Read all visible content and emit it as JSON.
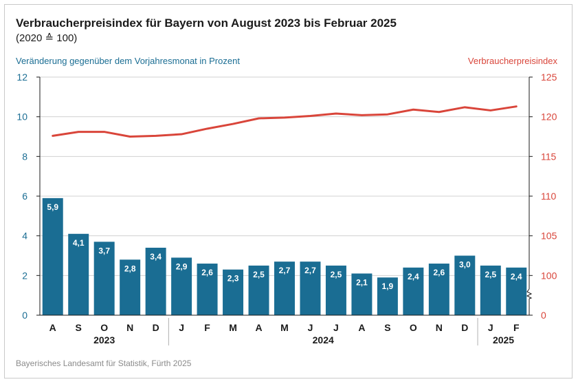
{
  "title": "Verbraucherpreisindex für Bayern von August 2023 bis Februar 2025",
  "subtitle": "(2020 ≙ 100)",
  "source": "Bayerisches Landesamt für Statistik, Fürth 2025",
  "colors": {
    "bar": "#1a6d93",
    "line": "#d9453a",
    "grid": "#d0d0d0",
    "axis_left": "#1a6d93",
    "axis_right": "#d9453a"
  },
  "chart_data": {
    "type": "bar+line",
    "categories": [
      "A",
      "S",
      "O",
      "N",
      "D",
      "J",
      "F",
      "M",
      "A",
      "M",
      "J",
      "J",
      "A",
      "S",
      "O",
      "N",
      "D",
      "J",
      "F"
    ],
    "year_groups": [
      {
        "label": "2023",
        "start": 0,
        "end": 4
      },
      {
        "label": "2024",
        "start": 5,
        "end": 16
      },
      {
        "label": "2025",
        "start": 17,
        "end": 18
      }
    ],
    "series": [
      {
        "name": "Veränderung gegenüber dem Vorjahresmonat in Prozent",
        "type": "bar",
        "axis": "left",
        "values": [
          5.9,
          4.1,
          3.7,
          2.8,
          3.4,
          2.9,
          2.6,
          2.3,
          2.5,
          2.7,
          2.7,
          2.5,
          2.1,
          1.9,
          2.4,
          2.6,
          3.0,
          2.5,
          2.4
        ],
        "labels": [
          "5,9",
          "4,1",
          "3,7",
          "2,8",
          "3,4",
          "2,9",
          "2,6",
          "2,3",
          "2,5",
          "2,7",
          "2,7",
          "2,5",
          "2,1",
          "1,9",
          "2,4",
          "2,6",
          "3,0",
          "2,5",
          "2,4"
        ]
      },
      {
        "name": "Verbraucherpreisindex",
        "type": "line",
        "axis": "right",
        "values": [
          117.6,
          118.1,
          118.1,
          117.5,
          117.6,
          117.8,
          118.5,
          119.1,
          119.8,
          119.9,
          120.1,
          120.4,
          120.2,
          120.3,
          120.9,
          120.6,
          121.2,
          120.8,
          121.3
        ]
      }
    ],
    "left_axis": {
      "ylim": [
        0,
        12
      ],
      "ticks": [
        0,
        2,
        4,
        6,
        8,
        10,
        12
      ],
      "tick_labels": [
        "0",
        "2",
        "4",
        "6",
        "8",
        "10",
        "12"
      ]
    },
    "right_axis": {
      "ylim": [
        100,
        125
      ],
      "ticks": [
        100,
        105,
        110,
        115,
        120,
        125
      ],
      "tick_labels": [
        "0",
        "100",
        "105",
        "110",
        "115",
        "120",
        "125"
      ],
      "broken_at_base": true
    },
    "grid": true
  }
}
